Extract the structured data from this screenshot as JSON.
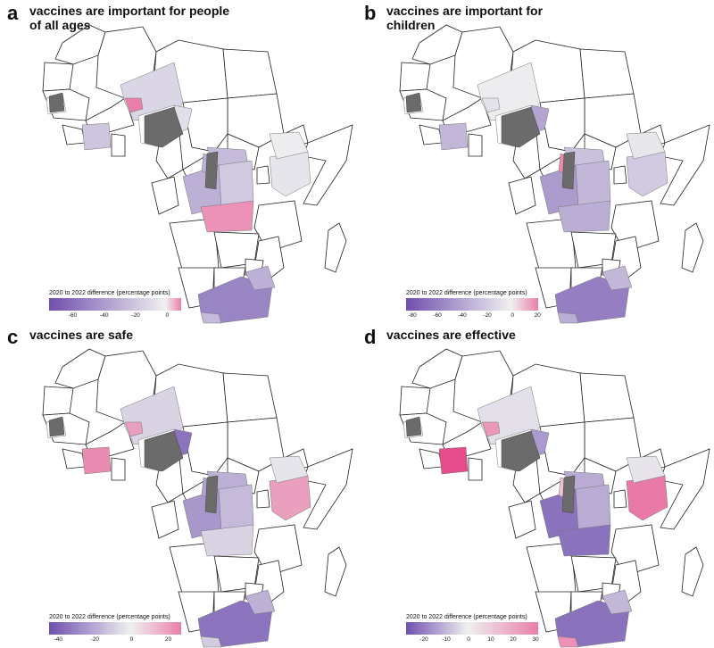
{
  "legend_title": "2020 to 2022 difference (percentage points)",
  "colors": {
    "negative": "#6f4fae",
    "neutral": "#f0f0f0",
    "positive": "#e5337b",
    "nodata": "#6b6b6b"
  },
  "panels": [
    {
      "letter": "a",
      "title": "vaccines are important for people of all ages",
      "ticks": [
        "-60",
        "-40",
        "-20",
        "0"
      ],
      "tick_values": [
        -60,
        -40,
        -20,
        0
      ],
      "range": [
        -75,
        10
      ],
      "fills": {
        "sahel": -12,
        "mali": 6,
        "nigeria_east": -8,
        "westafrica": -20,
        "car": -25,
        "drc_w": -30,
        "drc_e": -18,
        "drc_s": 5,
        "cameroon_south": -30,
        "kenya": -5,
        "ethiopia": -2,
        "southafrica": -50,
        "sa_east": -30,
        "angola_tip": -25
      }
    },
    {
      "letter": "b",
      "title": "vaccines are important for children",
      "ticks": [
        "-80",
        "-60",
        "-40",
        "-20",
        "0",
        "20"
      ],
      "tick_values": [
        -80,
        -60,
        -40,
        -20,
        0,
        20
      ],
      "range": [
        -85,
        22
      ],
      "fills": {
        "sahel": -2,
        "mali": -8,
        "nigeria_east": -40,
        "westafrica": -30,
        "car": -25,
        "drc_w": -45,
        "drc_e": -30,
        "drc_s": -35,
        "cameroon_south": 12,
        "kenya": -20,
        "ethiopia": -5,
        "southafrica": -60,
        "sa_east": -30,
        "angola_tip": -35
      }
    },
    {
      "letter": "c",
      "title": "vaccines are safe",
      "ticks": [
        "-40",
        "-20",
        "0",
        "20"
      ],
      "tick_values": [
        -40,
        -20,
        0,
        20
      ],
      "range": [
        -45,
        28
      ],
      "fills": {
        "sahel": -8,
        "mali": 12,
        "nigeria_east": -35,
        "westafrica": 15,
        "car": -18,
        "drc_w": -25,
        "drc_e": -15,
        "drc_s": -8,
        "cameroon_south": -22,
        "kenya": 12,
        "ethiopia": -3,
        "southafrica": -35,
        "sa_east": -18,
        "angola_tip": -10
      }
    },
    {
      "letter": "d",
      "title": "vaccines are effective",
      "ticks": [
        "-20",
        "-10",
        "0",
        "10",
        "20",
        "30"
      ],
      "tick_values": [
        -20,
        -10,
        0,
        10,
        20,
        30
      ],
      "range": [
        -28,
        32
      ],
      "fills": {
        "sahel": -3,
        "mali": 15,
        "nigeria_east": -15,
        "westafrica": 28,
        "car": -12,
        "drc_w": -22,
        "drc_e": -12,
        "drc_s": -22,
        "cameroon_south": 8,
        "kenya": 20,
        "ethiopia": -2,
        "southafrica": -22,
        "sa_east": -10,
        "angola_tip": 16
      }
    }
  ]
}
